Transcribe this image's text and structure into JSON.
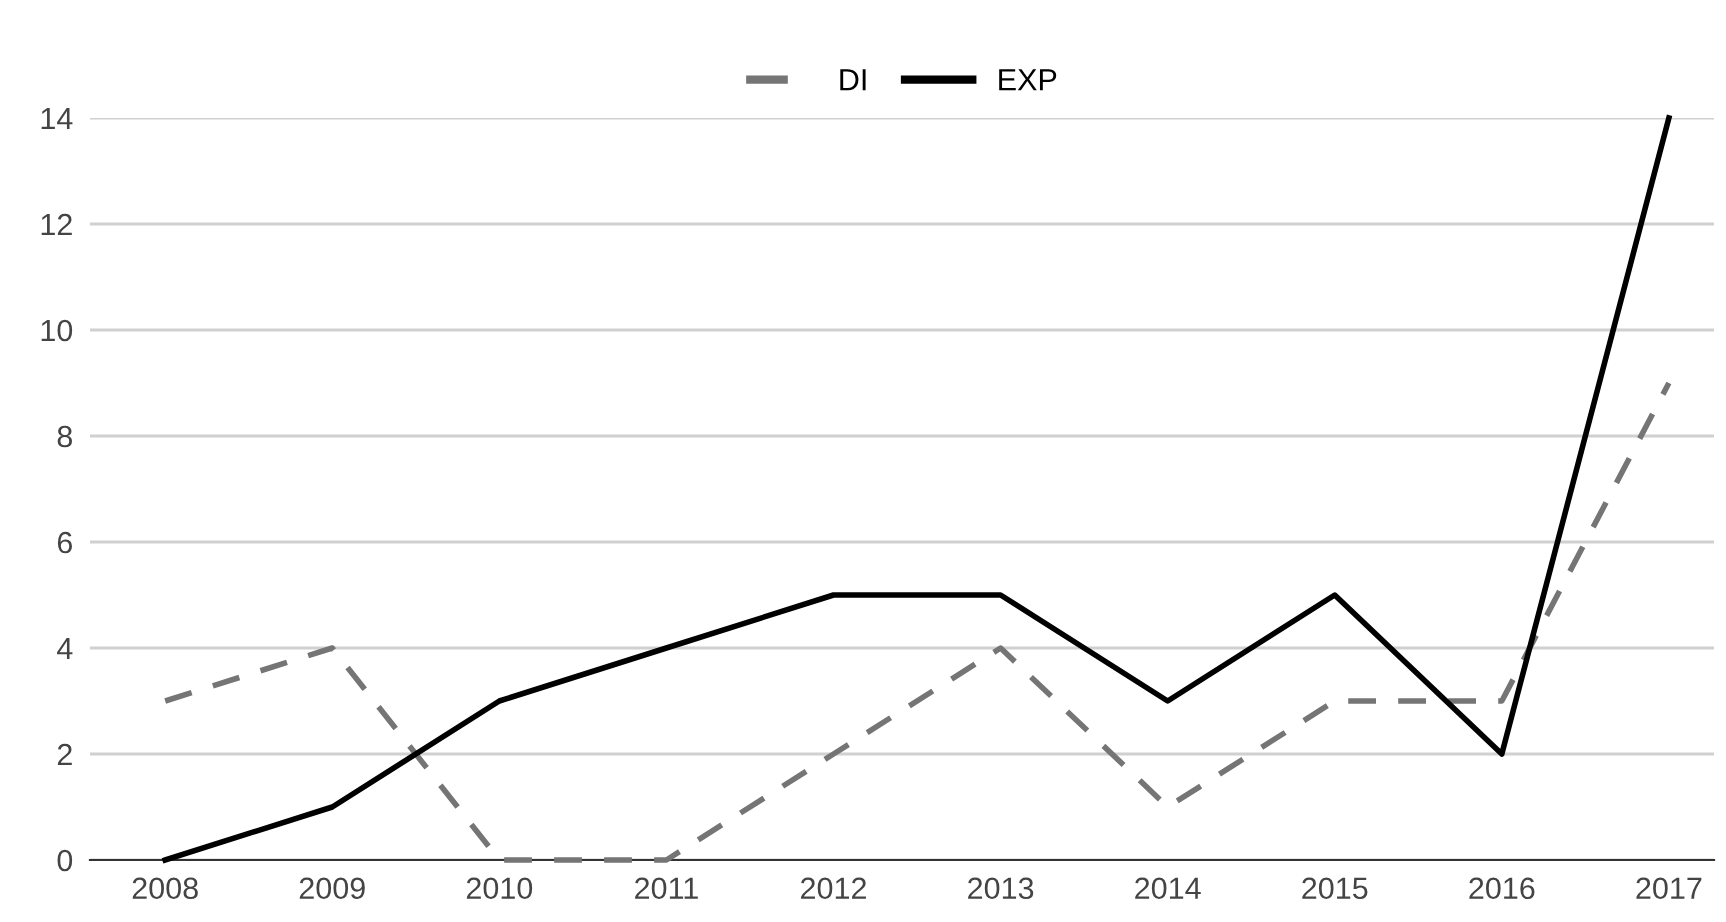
{
  "chart_data": {
    "type": "line",
    "categories": [
      "2008",
      "2009",
      "2010",
      "2011",
      "2012",
      "2013",
      "2014",
      "2015",
      "2016",
      "2017"
    ],
    "series": [
      {
        "name": "DI",
        "color": "#757575",
        "line_style": "dashed",
        "values": [
          3,
          4,
          0,
          0,
          2,
          4,
          1,
          3,
          3,
          9
        ]
      },
      {
        "name": "EXP",
        "color": "#000000",
        "line_style": "solid",
        "values": [
          0,
          1,
          3,
          4,
          5,
          5,
          3,
          5,
          2,
          14
        ]
      }
    ],
    "ylim": [
      0,
      14
    ],
    "yticks": [
      0,
      2,
      4,
      6,
      8,
      10,
      12,
      14
    ],
    "grid": "y",
    "legend": "top",
    "marker": "none"
  }
}
